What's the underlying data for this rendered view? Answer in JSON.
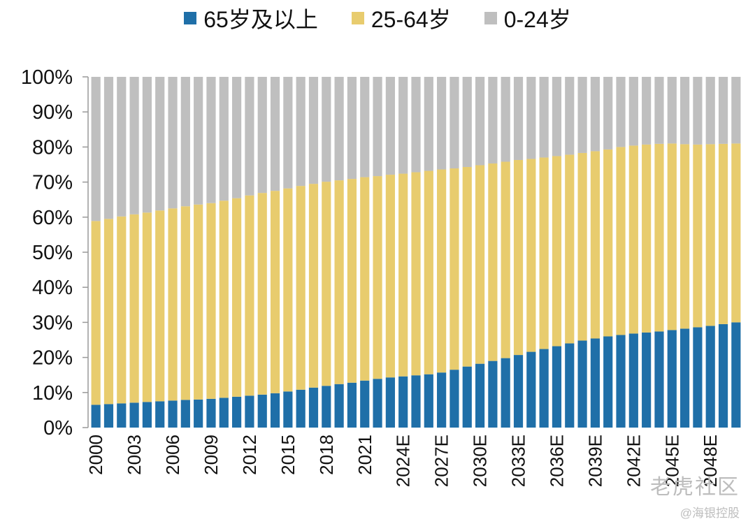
{
  "legend": {
    "items": [
      {
        "label": "65岁及以上",
        "color": "#1f6fa8"
      },
      {
        "label": "25-64岁",
        "color": "#e8cc6e"
      },
      {
        "label": "0-24岁",
        "color": "#bfbfbf"
      }
    ]
  },
  "watermark": {
    "main": "老虎社区",
    "sub": "@海银控股"
  },
  "chart_data": {
    "type": "bar",
    "stacked": true,
    "percent": true,
    "categories": [
      "2000",
      "2001",
      "2002",
      "2003",
      "2004",
      "2005",
      "2006",
      "2007",
      "2008",
      "2009",
      "2010",
      "2011",
      "2012",
      "2013",
      "2014",
      "2015",
      "2016",
      "2017",
      "2018",
      "2019",
      "2020",
      "2021",
      "2022",
      "2023",
      "2024E",
      "2025E",
      "2026E",
      "2027E",
      "2028E",
      "2029E",
      "2030E",
      "2031E",
      "2032E",
      "2033E",
      "2034E",
      "2035E",
      "2036E",
      "2037E",
      "2038E",
      "2039E",
      "2040E",
      "2041E",
      "2042E",
      "2043E",
      "2044E",
      "2045E",
      "2046E",
      "2047E",
      "2048E",
      "2049E",
      "2050E"
    ],
    "x_tick_labels": [
      "2000",
      "2003",
      "2006",
      "2009",
      "2012",
      "2015",
      "2018",
      "2021",
      "2024E",
      "2027E",
      "2030E",
      "2033E",
      "2036E",
      "2039E",
      "2042E",
      "2045E",
      "2048E"
    ],
    "y_ticks": [
      "0%",
      "10%",
      "20%",
      "30%",
      "40%",
      "50%",
      "60%",
      "70%",
      "80%",
      "90%",
      "100%"
    ],
    "ylim": [
      0,
      100
    ],
    "series": [
      {
        "name": "65岁及以上",
        "color": "#1f6fa8",
        "values": [
          6.5,
          6.7,
          6.9,
          7.1,
          7.3,
          7.5,
          7.7,
          7.9,
          8.0,
          8.2,
          8.5,
          8.8,
          9.1,
          9.4,
          9.8,
          10.3,
          10.8,
          11.4,
          11.9,
          12.4,
          12.8,
          13.4,
          13.9,
          14.3,
          14.6,
          14.9,
          15.2,
          15.7,
          16.5,
          17.4,
          18.2,
          19.0,
          19.8,
          20.7,
          21.6,
          22.4,
          23.2,
          24.0,
          24.8,
          25.4,
          26.0,
          26.4,
          26.8,
          27.1,
          27.4,
          27.8,
          28.2,
          28.6,
          29.0,
          29.5,
          30.0
        ]
      },
      {
        "name": "25-64岁",
        "color": "#e8cc6e",
        "values": [
          52.4,
          52.8,
          53.3,
          53.7,
          54.0,
          54.4,
          54.8,
          55.2,
          55.6,
          55.8,
          56.2,
          56.6,
          57.1,
          57.5,
          57.7,
          57.9,
          58.1,
          58.1,
          58.2,
          58.1,
          58.1,
          58.0,
          57.8,
          57.8,
          57.8,
          57.9,
          58.0,
          57.9,
          57.4,
          56.9,
          56.6,
          56.3,
          56.0,
          55.6,
          55.0,
          54.6,
          54.2,
          53.8,
          53.5,
          53.4,
          53.3,
          53.6,
          53.6,
          53.6,
          53.5,
          53.2,
          52.6,
          52.1,
          51.8,
          51.4,
          51.0
        ]
      },
      {
        "name": "0-24岁",
        "color": "#bfbfbf",
        "values": [
          41.1,
          40.5,
          39.8,
          39.2,
          38.7,
          38.1,
          37.5,
          36.9,
          36.4,
          36.0,
          35.3,
          34.6,
          33.8,
          33.1,
          32.5,
          31.8,
          31.1,
          30.5,
          29.9,
          29.5,
          29.1,
          28.6,
          28.3,
          27.9,
          27.6,
          27.2,
          26.8,
          26.4,
          26.1,
          25.7,
          25.2,
          24.7,
          24.2,
          23.7,
          23.4,
          23.0,
          22.6,
          22.2,
          21.7,
          21.2,
          20.7,
          20.0,
          19.6,
          19.3,
          19.1,
          19.0,
          19.2,
          19.3,
          19.2,
          19.1,
          19.0
        ]
      }
    ]
  }
}
